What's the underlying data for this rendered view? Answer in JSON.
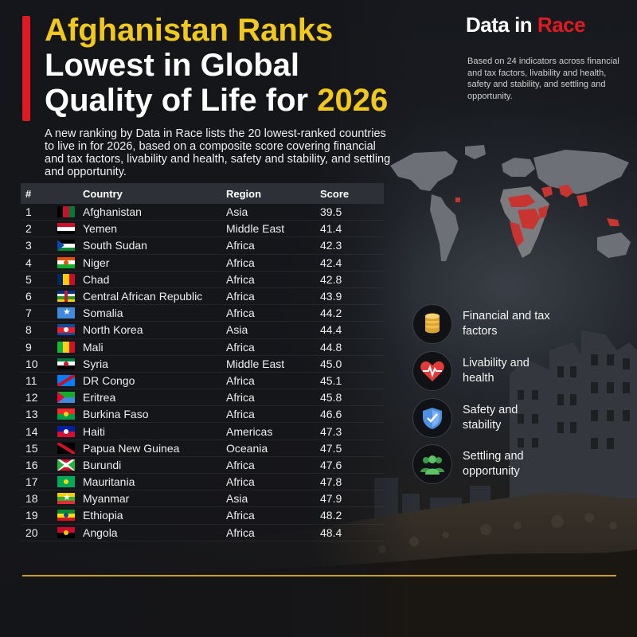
{
  "header": {
    "title_line1": "Afghanistan Ranks",
    "title_line2": "Lowest in Global",
    "title_line3_prefix": "Quality of Life for ",
    "title_line3_year": "2026",
    "subtitle": "A new ranking by Data in Race lists the 20 lowest-ranked countries to live in for 2026, based on a composite score covering financial and tax factors, livability and health, safety and stability, and settling and opportunity."
  },
  "brand": {
    "name_part1": "Data in ",
    "name_part2": "Race",
    "note": "Based on 24 indicators across financial and tax factors, livability and health, safety and stability, and settling and opportunity."
  },
  "table": {
    "headers": {
      "rank": "#",
      "country": "Country",
      "region": "Region",
      "score": "Score"
    },
    "rows": [
      {
        "rank": "1",
        "country": "Afghanistan",
        "region": "Asia",
        "score": "39.5"
      },
      {
        "rank": "2",
        "country": "Yemen",
        "region": "Middle East",
        "score": "41.4"
      },
      {
        "rank": "3",
        "country": "South Sudan",
        "region": "Africa",
        "score": "42.3"
      },
      {
        "rank": "4",
        "country": "Niger",
        "region": "Africa",
        "score": "42.4"
      },
      {
        "rank": "5",
        "country": "Chad",
        "region": "Africa",
        "score": "42.8"
      },
      {
        "rank": "6",
        "country": "Central African Republic",
        "region": "Africa",
        "score": "43.9"
      },
      {
        "rank": "7",
        "country": "Somalia",
        "region": "Africa",
        "score": "44.2"
      },
      {
        "rank": "8",
        "country": "North Korea",
        "region": "Asia",
        "score": "44.4"
      },
      {
        "rank": "9",
        "country": "Mali",
        "region": "Africa",
        "score": "44.8"
      },
      {
        "rank": "10",
        "country": "Syria",
        "region": "Middle East",
        "score": "45.0"
      },
      {
        "rank": "11",
        "country": "DR Congo",
        "region": "Africa",
        "score": "45.1"
      },
      {
        "rank": "12",
        "country": "Eritrea",
        "region": "Africa",
        "score": "45.8"
      },
      {
        "rank": "13",
        "country": "Burkina Faso",
        "region": "Africa",
        "score": "46.6"
      },
      {
        "rank": "14",
        "country": "Haiti",
        "region": "Americas",
        "score": "47.3"
      },
      {
        "rank": "15",
        "country": "Papua New Guinea",
        "region": "Oceania",
        "score": "47.5"
      },
      {
        "rank": "16",
        "country": "Burundi",
        "region": "Africa",
        "score": "47.6"
      },
      {
        "rank": "17",
        "country": "Mauritania",
        "region": "Africa",
        "score": "47.8"
      },
      {
        "rank": "18",
        "country": "Myanmar",
        "region": "Asia",
        "score": "47.9"
      },
      {
        "rank": "19",
        "country": "Ethiopia",
        "region": "Africa",
        "score": "48.2"
      },
      {
        "rank": "20",
        "country": "Angola",
        "region": "Africa",
        "score": "48.4"
      }
    ]
  },
  "categories": [
    {
      "label": "Financial and tax factors",
      "icon": "coins-icon",
      "color": "#f2c14a"
    },
    {
      "label": "Livability and health",
      "icon": "heartbeat-icon",
      "color": "#e53a3a"
    },
    {
      "label": "Safety and stability",
      "icon": "shield-icon",
      "color": "#4d8fe0"
    },
    {
      "label": "Settling and opportunity",
      "icon": "people-icon",
      "color": "#4fb35a"
    }
  ],
  "colors": {
    "accent_red": "#e01a22",
    "accent_yellow": "#f2c91a"
  }
}
